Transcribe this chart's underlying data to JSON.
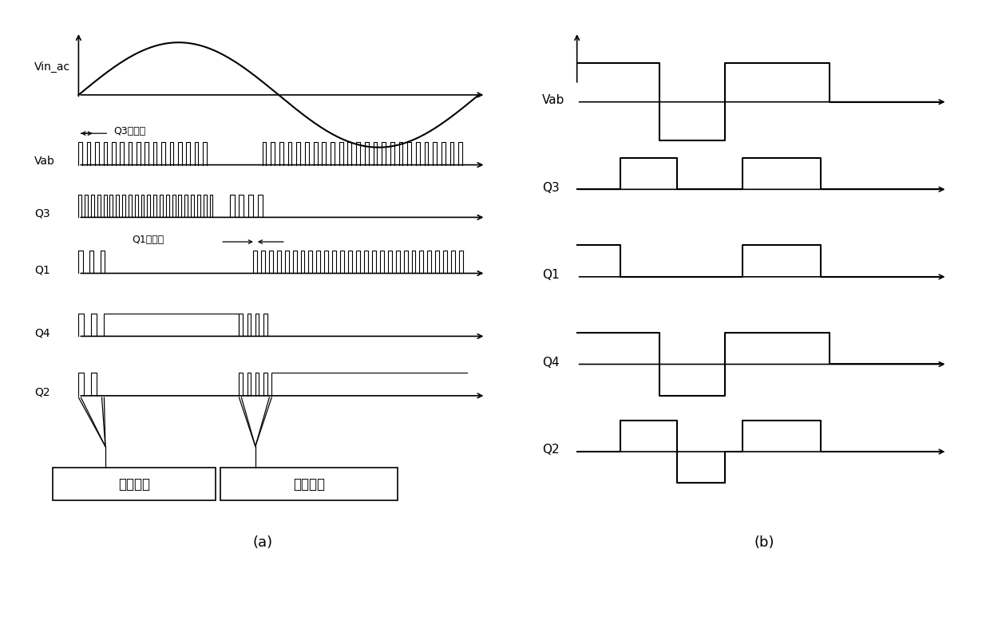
{
  "title_a": "(a)",
  "title_b": "(b)",
  "labels_a": [
    "Vin_ac",
    "Vab",
    "Q3",
    "Q1",
    "Q4",
    "Q2"
  ],
  "labels_b": [
    "Vab",
    "Q3",
    "Q1",
    "Q4",
    "Q2"
  ],
  "box_left": "死区控制",
  "box_right": "双极控制",
  "annotation_q3": "Q3软起动",
  "annotation_q1": "Q1软起动",
  "bg_color": "#ffffff",
  "line_color": "#000000",
  "fig_w": 12.4,
  "fig_h": 7.82
}
